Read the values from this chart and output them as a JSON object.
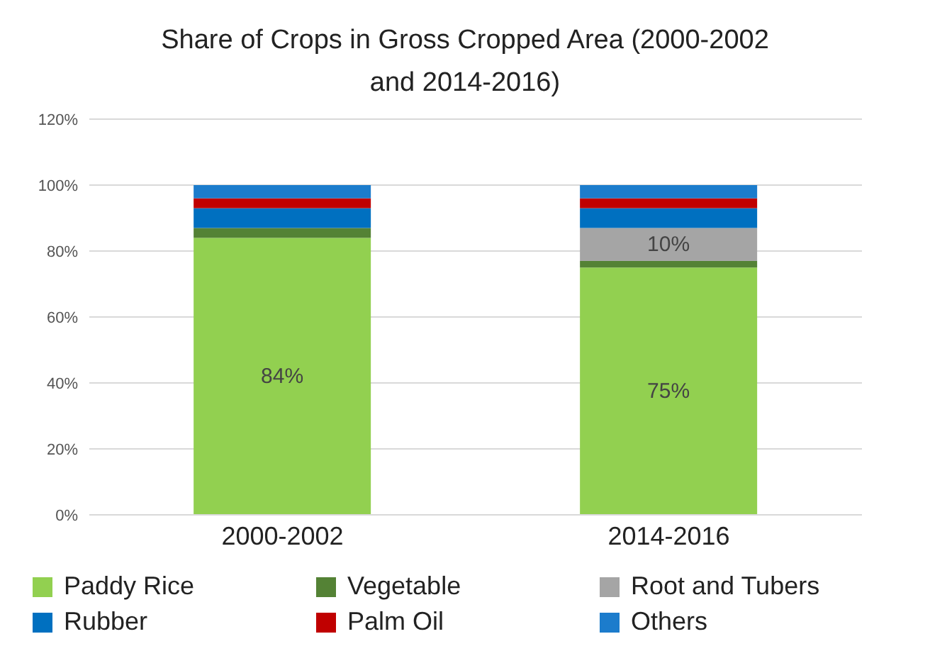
{
  "chart_data": {
    "type": "bar",
    "title": "Share of Crops in Gross Cropped Area (2000-2002 and 2014-2016)",
    "categories": [
      "2000-2002",
      "2014-2016"
    ],
    "stacked": true,
    "ylim": [
      0,
      120
    ],
    "yticks": [
      {
        "value": 0,
        "label": "0%"
      },
      {
        "value": 20,
        "label": "20%"
      },
      {
        "value": 40,
        "label": "40%"
      },
      {
        "value": 60,
        "label": "60%"
      },
      {
        "value": 80,
        "label": "80%"
      },
      {
        "value": 100,
        "label": "100%"
      },
      {
        "value": 120,
        "label": "120%"
      }
    ],
    "grid": "y",
    "legend": "bottom",
    "series": [
      {
        "name": "Paddy Rice",
        "color": "#92d050",
        "values": [
          84,
          75
        ],
        "value_labels": [
          "84%",
          "75%"
        ]
      },
      {
        "name": "Vegetable",
        "color": "#548235",
        "values": [
          3,
          2
        ]
      },
      {
        "name": "Root and Tubers",
        "color": "#a5a5a5",
        "values": [
          0,
          10
        ],
        "value_labels": [
          null,
          "10%"
        ]
      },
      {
        "name": "Rubber",
        "color": "#0070c0",
        "values": [
          6,
          6
        ]
      },
      {
        "name": "Palm Oil",
        "color": "#c00000",
        "values": [
          3,
          3
        ]
      },
      {
        "name": "Others",
        "color": "#1c7ccc",
        "values": [
          4,
          4
        ]
      }
    ]
  }
}
